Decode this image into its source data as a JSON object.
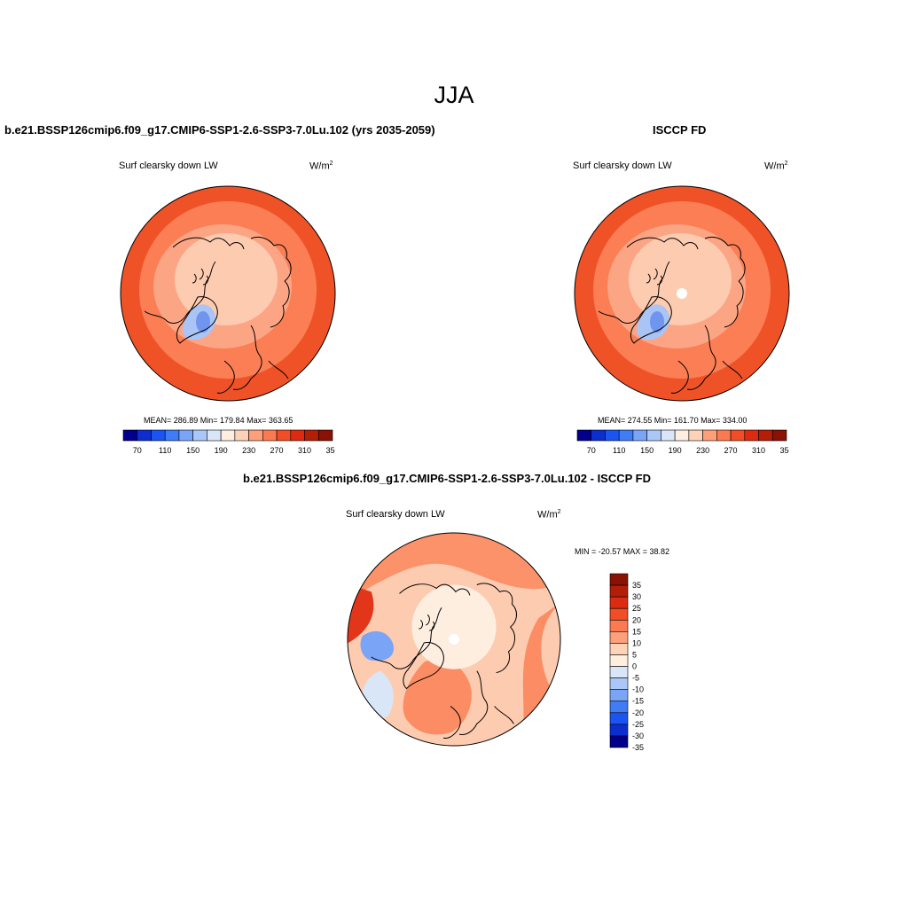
{
  "season": "JJA",
  "panels": {
    "model": {
      "title": "b.e21.BSSP126cmip6.f09_g17.CMIP6-SSP1-2.6-SSP3-7.0Lu.102 (yrs 2035-2059)",
      "variable": "Surf clearsky down LW",
      "units": "W/m",
      "units_sup": "2",
      "stats": "MEAN= 286.89  Min= 179.84  Max= 363.65"
    },
    "obs": {
      "title": "ISCCP FD",
      "variable": "Surf clearsky down LW",
      "units": "W/m",
      "units_sup": "2",
      "stats": "MEAN= 274.55  Min= 161.70  Max= 334.00"
    },
    "diff": {
      "title": "b.e21.BSSP126cmip6.f09_g17.CMIP6-SSP1-2.6-SSP3-7.0Lu.102 - ISCCP FD",
      "variable": "Surf clearsky down LW",
      "units": "W/m",
      "units_sup": "2",
      "minmax": "MIN = -20.57 MAX =  38.82"
    }
  },
  "colorbar_main": {
    "colors": [
      "#00008c",
      "#0d2ecf",
      "#1b54f0",
      "#3f7cf5",
      "#7aa5f7",
      "#aac7f7",
      "#d9e6f7",
      "#fdeee0",
      "#fdd2b6",
      "#fc9f7b",
      "#fb7a52",
      "#f14d27",
      "#dc2b10",
      "#b31e06",
      "#8a1204"
    ],
    "tick_labels": [
      "70",
      "110",
      "150",
      "190",
      "230",
      "270",
      "310",
      "350"
    ]
  },
  "colorbar_diff": {
    "colors": [
      "#8a1204",
      "#b31e06",
      "#dc2b10",
      "#f14d27",
      "#fb7a52",
      "#fc9f7b",
      "#fdd2b6",
      "#fdeee0",
      "#d9e6f7",
      "#aac7f7",
      "#7aa5f7",
      "#3f7cf5",
      "#1b54f0",
      "#0d2ecf",
      "#00008c"
    ],
    "tick_labels": [
      "35",
      "30",
      "25",
      "20",
      "15",
      "10",
      "5",
      "0",
      "-5",
      "-10",
      "-15",
      "-20",
      "-25",
      "-30",
      "-35"
    ]
  },
  "map_colors": {
    "outer": "#f05228",
    "mid": "#fb7e55",
    "light": "#fca585",
    "pale": "#fdcbb0",
    "blue": "#a9c4f5",
    "blue_dark": "#6f95ef",
    "diff_base": "#fdcbb0",
    "diff_pale": "#fdeee0",
    "diff_mid": "#fb8c63",
    "diff_dark": "#e2361a",
    "diff_blue": "#d9e6f7",
    "diff_blue2": "#7aa5f7"
  }
}
